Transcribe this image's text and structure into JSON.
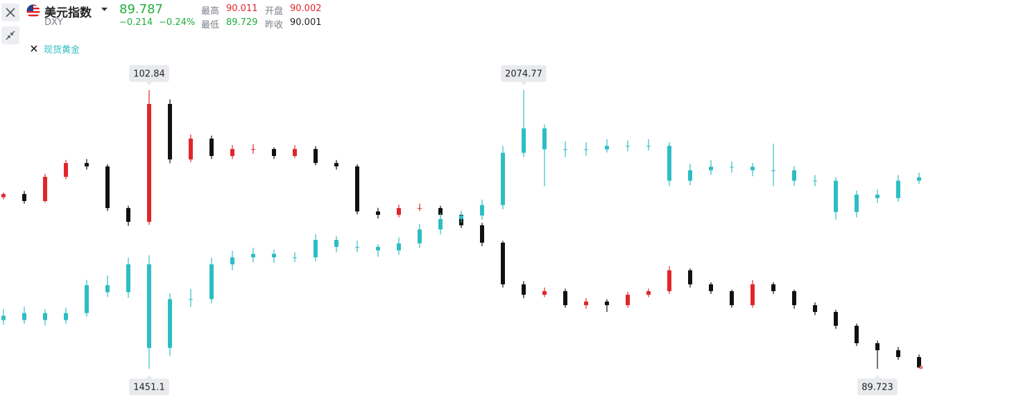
{
  "header": {
    "title": "美元指数",
    "symbol": "DXY",
    "price": "89.787",
    "change": "−0.214",
    "change_pct": "−0.24%",
    "stats": [
      [
        "最高",
        "90.011"
      ],
      [
        "开盘",
        "90.002"
      ],
      [
        "最低",
        "89.729"
      ],
      [
        "昨收",
        "90.001"
      ]
    ]
  },
  "chart_data": {
    "type": "candlestick",
    "series": [
      {
        "up_color": "#e0262b",
        "down_color": "#111111",
        "high_label": "102.84",
        "low_label": "89.723",
        "ohlc": [
          [
            97.8,
            98.02,
            97.7,
            97.95
          ],
          [
            97.95,
            98.1,
            97.5,
            97.62
          ],
          [
            97.62,
            98.9,
            97.55,
            98.76
          ],
          [
            98.76,
            99.55,
            98.65,
            99.41
          ],
          [
            99.41,
            99.6,
            99.1,
            99.25
          ],
          [
            99.25,
            99.35,
            97.15,
            97.29
          ],
          [
            97.29,
            97.4,
            96.45,
            96.64
          ],
          [
            96.64,
            102.84,
            96.5,
            102.19
          ],
          [
            102.19,
            102.4,
            99.4,
            99.58
          ],
          [
            99.58,
            100.75,
            99.45,
            100.56
          ],
          [
            100.56,
            100.7,
            99.6,
            99.74
          ],
          [
            99.74,
            100.25,
            99.6,
            100.07
          ],
          [
            100.07,
            100.3,
            99.85,
            100.07
          ],
          [
            100.07,
            100.15,
            99.6,
            99.74
          ],
          [
            99.74,
            100.25,
            99.65,
            100.07
          ],
          [
            100.07,
            100.2,
            99.3,
            99.41
          ],
          [
            99.41,
            99.55,
            99.1,
            99.25
          ],
          [
            99.25,
            99.35,
            97.0,
            97.13
          ],
          [
            97.13,
            97.3,
            96.8,
            96.97
          ],
          [
            96.97,
            97.45,
            96.85,
            97.29
          ],
          [
            97.29,
            97.5,
            97.15,
            97.29
          ],
          [
            97.29,
            97.4,
            96.85,
            96.97
          ],
          [
            96.97,
            97.05,
            96.35,
            96.48
          ],
          [
            96.48,
            96.6,
            95.5,
            95.66
          ],
          [
            95.66,
            95.75,
            93.55,
            93.7
          ],
          [
            93.7,
            93.85,
            93.05,
            93.21
          ],
          [
            93.21,
            93.55,
            93.1,
            93.38
          ],
          [
            93.38,
            93.5,
            92.6,
            92.72
          ],
          [
            92.72,
            93.05,
            92.55,
            92.89
          ],
          [
            92.89,
            93.0,
            92.4,
            92.72
          ],
          [
            92.72,
            93.35,
            92.6,
            93.21
          ],
          [
            93.21,
            93.5,
            93.1,
            93.38
          ],
          [
            93.38,
            94.55,
            93.25,
            94.36
          ],
          [
            94.36,
            94.45,
            93.55,
            93.7
          ],
          [
            93.7,
            93.8,
            93.25,
            93.38
          ],
          [
            93.38,
            93.45,
            92.6,
            92.72
          ],
          [
            92.72,
            93.9,
            92.6,
            93.7
          ],
          [
            93.7,
            93.8,
            93.25,
            93.38
          ],
          [
            93.38,
            93.45,
            92.55,
            92.72
          ],
          [
            92.72,
            92.85,
            92.25,
            92.4
          ],
          [
            92.4,
            92.5,
            91.6,
            91.75
          ],
          [
            91.75,
            91.85,
            90.8,
            90.93
          ],
          [
            90.93,
            91.05,
            89.723,
            90.6
          ],
          [
            90.6,
            90.75,
            90.15,
            90.28
          ],
          [
            90.28,
            90.4,
            89.75,
            89.79
          ]
        ]
      },
      {
        "name": "现货黄金",
        "color": "#2ebdc4",
        "high_label": "2074.77",
        "low_label": "1451.1",
        "ohlc": [
          [
            1570,
            1585,
            1550,
            1560.3
          ],
          [
            1560.3,
            1590,
            1552,
            1575.9
          ],
          [
            1575.9,
            1585,
            1548,
            1560.3
          ],
          [
            1560.3,
            1588,
            1552,
            1575.9
          ],
          [
            1575.9,
            1650,
            1568,
            1638.3
          ],
          [
            1638.3,
            1660,
            1612,
            1622.7
          ],
          [
            1622.7,
            1700,
            1610,
            1685.0
          ],
          [
            1685.0,
            1705,
            1451.1,
            1498.0
          ],
          [
            1498.0,
            1620,
            1480,
            1607.1
          ],
          [
            1607.1,
            1630,
            1590,
            1607.1
          ],
          [
            1607.1,
            1700,
            1598,
            1685.0
          ],
          [
            1685.0,
            1715,
            1672,
            1700.6
          ],
          [
            1700.6,
            1722,
            1690,
            1708.4
          ],
          [
            1708.4,
            1718,
            1688,
            1700.6
          ],
          [
            1700.6,
            1712,
            1690,
            1700.6
          ],
          [
            1700.6,
            1752,
            1692,
            1739.6
          ],
          [
            1739.6,
            1748,
            1712,
            1724.0
          ],
          [
            1724.0,
            1738,
            1712,
            1724.0
          ],
          [
            1724.0,
            1730,
            1702,
            1716.2
          ],
          [
            1716.2,
            1745,
            1706,
            1731.8
          ],
          [
            1731.8,
            1775,
            1722,
            1763.0
          ],
          [
            1763.0,
            1800,
            1752,
            1786.4
          ],
          [
            1786.4,
            1805,
            1778,
            1794.2
          ],
          [
            1794.2,
            1830,
            1785,
            1817.6
          ],
          [
            1817.6,
            1950,
            1808,
            1934.5
          ],
          [
            1934.5,
            2074.77,
            1925,
            1989.1
          ],
          [
            1989.1,
            1998,
            1860,
            1942.3
          ],
          [
            1942.3,
            1960,
            1925,
            1942.3
          ],
          [
            1942.3,
            1958,
            1928,
            1942.3
          ],
          [
            1942.3,
            1965,
            1935,
            1950.1
          ],
          [
            1950.1,
            1962,
            1938,
            1950.1
          ],
          [
            1950.1,
            1965,
            1940,
            1950.1
          ],
          [
            1950.1,
            1958,
            1860,
            1872.1
          ],
          [
            1872.1,
            1910,
            1862,
            1895.5
          ],
          [
            1895.5,
            1918,
            1885,
            1903.3
          ],
          [
            1903.3,
            1915,
            1890,
            1903.3
          ],
          [
            1903.3,
            1912,
            1882,
            1895.5
          ],
          [
            1895.5,
            1955,
            1860,
            1895.5
          ],
          [
            1895.5,
            1905,
            1860,
            1872.1
          ],
          [
            1872.1,
            1885,
            1860,
            1872.1
          ],
          [
            1872.1,
            1880,
            1785,
            1802.0
          ],
          [
            1802.0,
            1850,
            1790,
            1840.9
          ],
          [
            1840.9,
            1852,
            1822,
            1833.2
          ],
          [
            1833.2,
            1885,
            1825,
            1872.1
          ],
          [
            1872.1,
            1890,
            1865,
            1879.9
          ]
        ]
      }
    ]
  }
}
